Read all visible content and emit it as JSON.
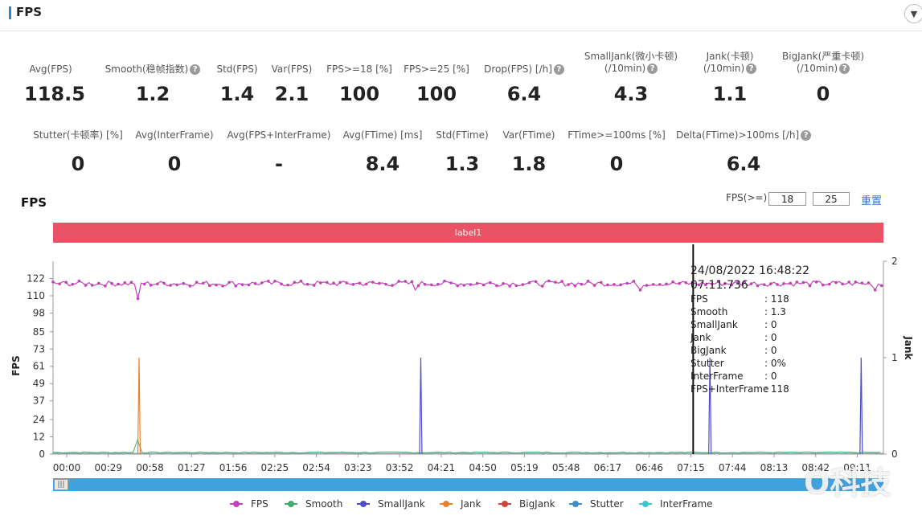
{
  "header": {
    "title": "FPS",
    "accent_color": "#3a7bd5",
    "collapse_icon": "chevron-down-icon"
  },
  "stats_row1": [
    {
      "label": "Avg(FPS)",
      "value": "118.5",
      "help": false
    },
    {
      "label": "Smooth(稳帧指数)",
      "value": "1.2",
      "help": true
    },
    {
      "label": "Std(FPS)",
      "value": "1.4",
      "help": false
    },
    {
      "label": "Var(FPS)",
      "value": "2.1",
      "help": false
    },
    {
      "label": "FPS>=18 [%]",
      "value": "100",
      "help": false
    },
    {
      "label": "FPS>=25 [%]",
      "value": "100",
      "help": false
    },
    {
      "label": "Drop(FPS) [/h]",
      "value": "6.4",
      "help": true
    },
    {
      "label": "SmallJank(微小卡顿)",
      "label2": "(/10min)",
      "value": "4.3",
      "help": true
    },
    {
      "label": "Jank(卡顿)",
      "label2": "(/10min)",
      "value": "1.1",
      "help": true
    },
    {
      "label": "BigJank(严重卡顿)",
      "label2": "(/10min)",
      "value": "0",
      "help": true
    }
  ],
  "stats_row2": [
    {
      "label": "Stutter(卡顿率) [%]",
      "value": "0",
      "help": false
    },
    {
      "label": "Avg(InterFrame)",
      "value": "0",
      "help": false
    },
    {
      "label": "Avg(FPS+InterFrame)",
      "value": "-",
      "help": false
    },
    {
      "label": "Avg(FTime) [ms]",
      "value": "8.4",
      "help": false
    },
    {
      "label": "Std(FTime)",
      "value": "1.3",
      "help": false
    },
    {
      "label": "Var(FTime)",
      "value": "1.8",
      "help": false
    },
    {
      "label": "FTime>=100ms [%]",
      "value": "0",
      "help": false
    },
    {
      "label": "Delta(FTime)>100ms [/h]",
      "value": "6.4",
      "help": true
    }
  ],
  "chart_section": {
    "title": "FPS",
    "threshold_label": "FPS(>=)",
    "threshold_1": "18",
    "threshold_2": "25",
    "reset_label": "重置",
    "band_label": "label1"
  },
  "tooltip": {
    "datetime": "24/08/2022 16:48:22",
    "elapsed": "07:11:736",
    "rows": [
      {
        "k": "FPS",
        "v": ": 118"
      },
      {
        "k": "Smooth",
        "v": ": 1.3"
      },
      {
        "k": "SmallJank",
        "v": ": 0"
      },
      {
        "k": "Jank",
        "v": ": 0"
      },
      {
        "k": "BigJank",
        "v": ": 0"
      },
      {
        "k": "Stutter",
        "v": ": 0%"
      },
      {
        "k": "InterFrame",
        "v": ": 0"
      },
      {
        "k": "FPS+InterFrame",
        "v": ": 118"
      }
    ]
  },
  "chart_data": {
    "type": "line",
    "ylabel": "FPS",
    "y2label": "Jank",
    "yticks": [
      0,
      12,
      24,
      37,
      49,
      61,
      73,
      85,
      98,
      110,
      122
    ],
    "ylim": [
      0,
      134
    ],
    "y2ticks": [
      0,
      1,
      2
    ],
    "y2lim": [
      0,
      2
    ],
    "xticks": [
      "00:00",
      "00:29",
      "00:58",
      "01:27",
      "01:56",
      "02:25",
      "02:54",
      "03:23",
      "03:52",
      "04:21",
      "04:50",
      "05:19",
      "05:48",
      "06:17",
      "06:46",
      "07:15",
      "07:44",
      "08:13",
      "08:42",
      "09:11"
    ],
    "xlim_seconds": [
      0,
      560
    ],
    "cursor_seconds": 431.7,
    "grid": false,
    "legend_position": "bottom",
    "series": [
      {
        "name": "FPS",
        "color": "#c342b8",
        "axis": "left",
        "baseline": 118.5,
        "noise": 1.4,
        "dips": [
          [
            58,
            108
          ],
          [
            244,
            114
          ],
          [
            396,
            114
          ],
          [
            555,
            114
          ]
        ]
      },
      {
        "name": "Smooth",
        "color": "#3fae6b",
        "axis": "left",
        "baseline": 1.2,
        "spikes": [
          [
            58,
            10
          ]
        ]
      },
      {
        "name": "SmallJank",
        "color": "#4d4ec6",
        "axis": "right",
        "spikes": [
          [
            248,
            1
          ],
          [
            443,
            1
          ],
          [
            545,
            1
          ]
        ]
      },
      {
        "name": "Jank",
        "color": "#e8812e",
        "axis": "right",
        "spikes": [
          [
            58,
            1
          ]
        ]
      },
      {
        "name": "BigJank",
        "color": "#d0433c",
        "axis": "right",
        "spikes": []
      },
      {
        "name": "Stutter",
        "color": "#3f8cc8",
        "axis": "right",
        "spikes": []
      },
      {
        "name": "InterFrame",
        "color": "#3ec6cf",
        "axis": "right",
        "spikes": []
      }
    ]
  },
  "slider": {
    "handle_icon": "drag-handle-icon"
  },
  "watermark": "O科技"
}
